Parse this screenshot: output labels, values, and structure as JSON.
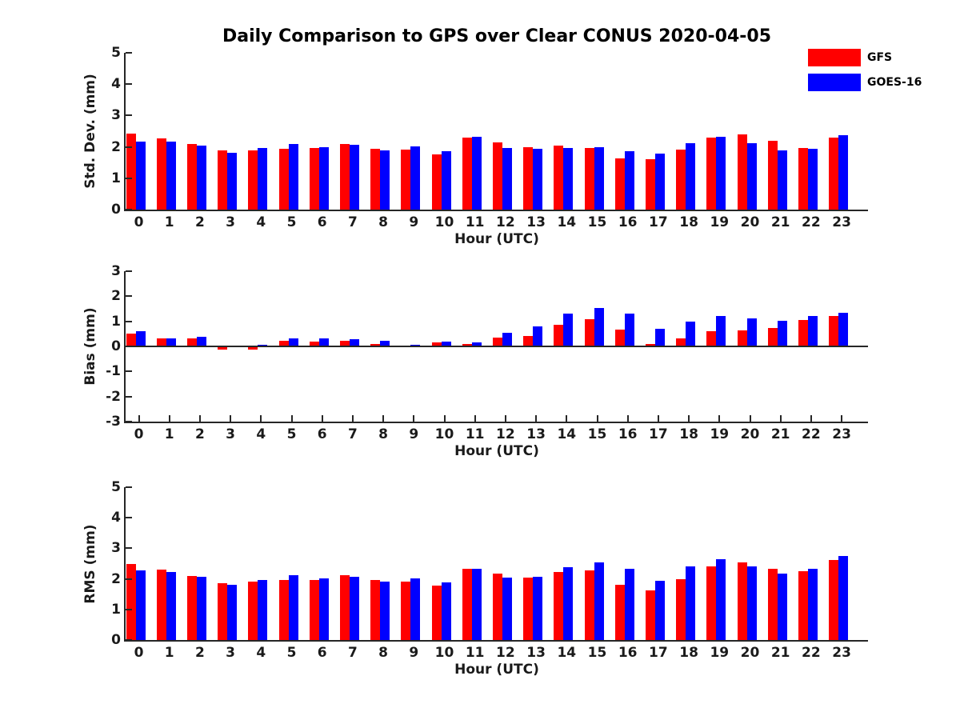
{
  "title": "Daily Comparison to GPS over Clear CONUS 2020-04-05",
  "colors": {
    "gfs_red": "#ff0000",
    "goes_blue": "#0000ff",
    "axis": "#262626",
    "text": "#1a1a1a",
    "background": "#ffffff"
  },
  "legend": [
    {
      "label": "GFS",
      "color": "#ff0000"
    },
    {
      "label": "GOES-16",
      "color": "#0000ff"
    }
  ],
  "chart_data": [
    {
      "type": "bar",
      "panel": "std-dev",
      "xlabel": "Hour (UTC)",
      "ylabel": "Std. Dev. (mm)",
      "ylim": [
        0,
        5
      ],
      "yticks": [
        0,
        1,
        2,
        3,
        4,
        5
      ],
      "grid": false,
      "legend_position": "figure-top-right",
      "categories": [
        "0",
        "1",
        "2",
        "3",
        "4",
        "5",
        "6",
        "7",
        "8",
        "9",
        "10",
        "11",
        "12",
        "13",
        "14",
        "15",
        "16",
        "17",
        "18",
        "19",
        "20",
        "21",
        "22",
        "23"
      ],
      "series": [
        {
          "name": "GFS",
          "color": "#ff0000",
          "values": [
            2.42,
            2.26,
            2.08,
            1.88,
            1.89,
            1.94,
            1.96,
            2.1,
            1.95,
            1.92,
            1.77,
            2.3,
            2.15,
            1.98,
            2.03,
            1.96,
            1.62,
            1.61,
            1.92,
            2.3,
            2.41,
            2.2,
            1.96,
            2.3
          ]
        },
        {
          "name": "GOES-16",
          "color": "#0000ff",
          "values": [
            2.16,
            2.18,
            2.05,
            1.8,
            1.96,
            2.08,
            1.99,
            2.06,
            1.9,
            2.02,
            1.86,
            2.31,
            1.96,
            1.93,
            1.96,
            1.99,
            1.86,
            1.78,
            2.11,
            2.32,
            2.11,
            1.9,
            1.93,
            2.38
          ]
        }
      ]
    },
    {
      "type": "bar",
      "panel": "bias",
      "xlabel": "Hour (UTC)",
      "ylabel": "Bias (mm)",
      "ylim": [
        -3,
        3
      ],
      "yticks": [
        -3,
        -2,
        -1,
        0,
        1,
        2,
        3
      ],
      "grid": false,
      "categories": [
        "0",
        "1",
        "2",
        "3",
        "4",
        "5",
        "6",
        "7",
        "8",
        "9",
        "10",
        "11",
        "12",
        "13",
        "14",
        "15",
        "16",
        "17",
        "18",
        "19",
        "20",
        "21",
        "22",
        "23"
      ],
      "series": [
        {
          "name": "GFS",
          "color": "#ff0000",
          "values": [
            0.5,
            0.33,
            0.33,
            -0.13,
            -0.13,
            0.22,
            0.19,
            0.22,
            0.08,
            0.02,
            0.15,
            0.11,
            0.35,
            0.4,
            0.86,
            1.09,
            0.66,
            0.08,
            0.32,
            0.6,
            0.65,
            0.73,
            1.04,
            1.22
          ]
        },
        {
          "name": "GOES-16",
          "color": "#0000ff",
          "values": [
            0.62,
            0.33,
            0.38,
            0.03,
            0.05,
            0.33,
            0.33,
            0.3,
            0.22,
            0.06,
            0.2,
            0.16,
            0.53,
            0.8,
            1.32,
            1.53,
            1.32,
            0.7,
            0.98,
            1.21,
            1.11,
            1.02,
            1.22,
            1.33
          ]
        }
      ]
    },
    {
      "type": "bar",
      "panel": "rms",
      "xlabel": "Hour (UTC)",
      "ylabel": "RMS (mm)",
      "ylim": [
        0,
        5
      ],
      "yticks": [
        0,
        1,
        2,
        3,
        4,
        5
      ],
      "grid": false,
      "categories": [
        "0",
        "1",
        "2",
        "3",
        "4",
        "5",
        "6",
        "7",
        "8",
        "9",
        "10",
        "11",
        "12",
        "13",
        "14",
        "15",
        "16",
        "17",
        "18",
        "19",
        "20",
        "21",
        "22",
        "23"
      ],
      "series": [
        {
          "name": "GFS",
          "color": "#ff0000",
          "values": [
            2.5,
            2.3,
            2.1,
            1.87,
            1.9,
            1.97,
            1.97,
            2.12,
            1.96,
            1.92,
            1.78,
            2.33,
            2.18,
            2.05,
            2.22,
            2.27,
            1.8,
            1.63,
            2.0,
            2.42,
            2.53,
            2.34,
            2.25,
            2.63
          ]
        },
        {
          "name": "GOES-16",
          "color": "#0000ff",
          "values": [
            2.28,
            2.23,
            2.08,
            1.81,
            1.97,
            2.12,
            2.01,
            2.06,
            1.91,
            2.02,
            1.89,
            2.34,
            2.05,
            2.07,
            2.37,
            2.55,
            2.32,
            1.94,
            2.4,
            2.65,
            2.4,
            2.18,
            2.32,
            2.76
          ]
        }
      ]
    }
  ]
}
